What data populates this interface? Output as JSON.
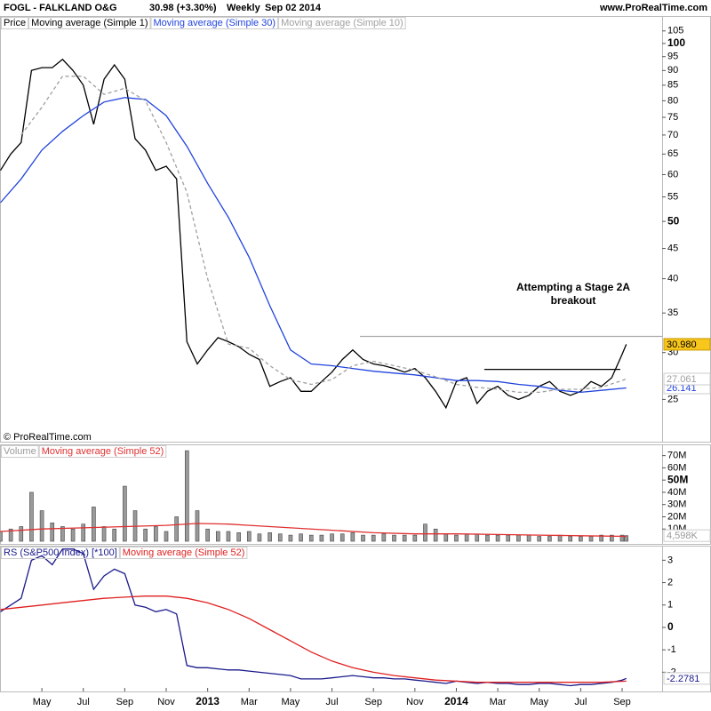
{
  "header": {
    "symbol": "FOGL - FALKLAND O&G",
    "quote": "30.98 (+3.30%)",
    "period": "Weekly",
    "date": "Sep 02 2014",
    "source": "www.ProRealTime.com"
  },
  "chart_data": [
    {
      "type": "line",
      "label": "Price",
      "log_scale": true,
      "copyright": "© ProRealTime.com",
      "annotation": [
        "Attempting a Stage 2A",
        "breakout"
      ],
      "xlim": [
        1.98,
        33.93
      ],
      "ylim": [
        22.1,
        107.5
      ],
      "yticks": [
        105,
        100,
        95,
        90,
        85,
        80,
        75,
        70,
        65,
        60,
        55,
        50,
        45,
        40,
        35,
        30,
        25
      ],
      "major_yticks": [
        100,
        50
      ],
      "levels": [
        {
          "value": 31.95,
          "x": [
            19.35,
            33.93
          ],
          "color": "#aaaaaa"
        },
        {
          "value": 28.1,
          "x": [
            25.35,
            31.91
          ],
          "color": "#000000"
        }
      ],
      "series": [
        {
          "name": "Moving average (Simple 1)",
          "type": "line",
          "color": "#000000",
          "last_label": "30.980",
          "last_label_fill": "#f8c61c",
          "x": [
            2,
            2.5,
            3,
            3.5,
            4,
            4.5,
            5,
            5.5,
            6,
            6.5,
            7,
            7.5,
            8,
            8.5,
            9,
            9.5,
            10,
            10.5,
            11,
            11.5,
            12,
            12.5,
            13,
            13.5,
            14,
            14.5,
            15,
            15.5,
            16,
            16.5,
            17,
            17.5,
            18,
            18.5,
            19,
            19.5,
            20,
            20.5,
            21,
            21.5,
            22,
            22.5,
            23,
            23.5,
            24,
            24.5,
            25,
            25.5,
            26,
            26.5,
            27,
            27.5,
            28,
            28.5,
            29,
            29.5,
            30,
            30.5,
            31,
            31.5,
            32,
            32.2
          ],
          "values": [
            61,
            65,
            68,
            90,
            91,
            91,
            94,
            90,
            85,
            73,
            87,
            92,
            87,
            69,
            66,
            61,
            62,
            59,
            31.3,
            28.7,
            30.3,
            31.8,
            31.3,
            30.7,
            29.8,
            29.2,
            26.3,
            26.8,
            27.2,
            25.8,
            25.8,
            26.8,
            27.8,
            29.2,
            30.3,
            29.2,
            28.7,
            28.5,
            28.2,
            27.8,
            28.2,
            27.2,
            25.8,
            24.2,
            26.8,
            27.2,
            24.6,
            25.8,
            26.3,
            25.4,
            25,
            25.4,
            26.3,
            26.8,
            25.8,
            25.4,
            25.8,
            26.8,
            26.3,
            27.2,
            29.8,
            30.98
          ]
        },
        {
          "name": "Moving average (Simple 30)",
          "type": "line",
          "color": "#2244dd",
          "last_label": "26.141",
          "x": [
            2,
            3,
            4,
            5,
            6,
            7,
            8,
            9,
            10,
            11,
            12,
            13,
            14,
            15,
            16,
            17,
            18,
            19,
            20,
            21,
            22,
            23,
            24,
            25,
            26,
            27,
            28,
            29,
            30,
            31,
            32.2
          ],
          "values": [
            53.8,
            59,
            66,
            71,
            75.5,
            79.6,
            81,
            80.4,
            75.5,
            67,
            58,
            50.8,
            43.5,
            36,
            30.3,
            28.7,
            28.5,
            28.2,
            27.9,
            27.7,
            27.5,
            27.2,
            26.9,
            26.9,
            26.8,
            26.5,
            26.3,
            25.9,
            25.7,
            25.9,
            26.141
          ]
        },
        {
          "name": "Moving average (Simple 10)",
          "type": "line",
          "dash": true,
          "color": "#a0a0a0",
          "last_label": "27.061",
          "x": [
            3,
            4,
            5,
            6,
            7,
            8,
            9,
            10,
            11,
            12,
            13,
            14,
            15,
            16,
            17,
            18,
            19,
            20,
            21,
            22,
            23,
            24,
            25,
            26,
            27,
            28,
            29,
            30,
            31,
            32.2
          ],
          "values": [
            70,
            78,
            88,
            88,
            82,
            84,
            80,
            68,
            56,
            40,
            31,
            30.5,
            28.5,
            27,
            26.5,
            27,
            28.5,
            29,
            28.5,
            28,
            27.3,
            26.5,
            26.2,
            26,
            25.7,
            25.7,
            26,
            26,
            26.2,
            27.061
          ]
        }
      ]
    },
    {
      "type": "bar",
      "xlim": [
        1.98,
        33.93
      ],
      "ylim": [
        0,
        77
      ],
      "yticks": [
        {
          "value": 70,
          "label": "70M"
        },
        {
          "value": 60,
          "label": "60M"
        },
        {
          "value": 50,
          "label": "50M"
        },
        {
          "value": 40,
          "label": "40M"
        },
        {
          "value": 30,
          "label": "30M"
        },
        {
          "value": 20,
          "label": "20M"
        },
        {
          "value": 10,
          "label": "10M"
        }
      ],
      "major_yticks": [
        50
      ],
      "series": [
        {
          "name": "Volume",
          "type": "bar",
          "color": "#9a9a9a",
          "last_label": "4,598K",
          "x": [
            2,
            2.5,
            3,
            3.5,
            4,
            4.5,
            5,
            5.5,
            6,
            6.5,
            7,
            7.5,
            8,
            8.5,
            9,
            9.5,
            10,
            10.5,
            11,
            11.5,
            12,
            12.5,
            13,
            13.5,
            14,
            14.5,
            15,
            15.5,
            16,
            16.5,
            17,
            17.5,
            18,
            18.5,
            19,
            19.5,
            20,
            20.5,
            21,
            21.5,
            22,
            22.5,
            23,
            23.5,
            24,
            24.5,
            25,
            25.5,
            26,
            26.5,
            27,
            27.5,
            28,
            28.5,
            29,
            29.5,
            30,
            30.5,
            31,
            31.5,
            32,
            32.2
          ],
          "values": [
            8,
            10,
            12,
            40,
            25,
            15,
            12,
            10,
            14,
            28,
            12,
            10,
            45,
            25,
            10,
            12,
            8,
            20,
            74,
            25,
            10,
            8,
            8,
            7,
            8,
            6,
            7,
            6,
            5,
            6,
            5,
            5,
            6,
            6,
            7,
            5,
            5,
            6,
            5,
            5,
            5,
            14,
            10,
            6,
            5,
            6,
            6,
            5,
            5,
            5,
            5,
            5,
            4,
            4,
            5,
            4,
            4,
            4,
            5,
            5,
            5,
            4.598
          ]
        },
        {
          "name": "Moving average (Simple 52)",
          "type": "line",
          "color": "#e03030",
          "x": [
            2,
            4,
            6,
            8,
            10,
            11.5,
            13,
            14,
            16,
            18,
            20,
            22,
            24,
            26,
            28,
            30,
            32.2
          ],
          "values": [
            8,
            10,
            11,
            12,
            13,
            14.5,
            14,
            13,
            11,
            9,
            7,
            6,
            6,
            5.5,
            5,
            4.5,
            4
          ]
        }
      ]
    },
    {
      "type": "line",
      "xlim": [
        1.98,
        33.93
      ],
      "ylim": [
        -2.74,
        3.53
      ],
      "yticks": [
        3,
        2,
        1,
        0,
        -1,
        -2
      ],
      "major_yticks": [
        0
      ],
      "xticks": [
        {
          "value": 4,
          "label": "May"
        },
        {
          "value": 6,
          "label": "Jul"
        },
        {
          "value": 8,
          "label": "Sep"
        },
        {
          "value": 10,
          "label": "Nov"
        },
        {
          "value": 12,
          "label": "2013"
        },
        {
          "value": 14,
          "label": "Mar"
        },
        {
          "value": 16,
          "label": "May"
        },
        {
          "value": 18,
          "label": "Jul"
        },
        {
          "value": 20,
          "label": "Sep"
        },
        {
          "value": 22,
          "label": "Nov"
        },
        {
          "value": 24,
          "label": "2014"
        },
        {
          "value": 26,
          "label": "Mar"
        },
        {
          "value": 28,
          "label": "May"
        },
        {
          "value": 30,
          "label": "Jul"
        },
        {
          "value": 32,
          "label": "Sep"
        }
      ],
      "major_xticks": [
        12,
        24
      ],
      "series": [
        {
          "name": "RS (S&P500 Index) [*100]",
          "type": "line",
          "color": "#1a1a8c",
          "last_label": "-2.2781",
          "x": [
            2,
            2.5,
            3,
            3.5,
            4,
            4.5,
            5,
            5.5,
            6,
            6.5,
            7,
            7.5,
            8,
            8.5,
            9,
            9.5,
            10,
            10.5,
            11,
            11.5,
            12,
            12.5,
            13,
            13.5,
            14,
            14.5,
            15,
            15.5,
            16,
            16.5,
            17,
            17.5,
            18,
            18.5,
            19,
            19.5,
            20,
            20.5,
            21,
            21.5,
            22,
            22.5,
            23,
            23.5,
            24,
            24.5,
            25,
            25.5,
            26,
            26.5,
            27,
            27.5,
            28,
            28.5,
            29,
            29.5,
            30,
            30.5,
            31,
            31.5,
            32,
            32.2
          ],
          "values": [
            0.7,
            1.0,
            1.3,
            3.0,
            3.2,
            2.8,
            3.5,
            3.5,
            3.3,
            1.7,
            2.3,
            2.6,
            2.4,
            1.0,
            0.9,
            0.7,
            0.8,
            0.6,
            -1.7,
            -1.8,
            -1.8,
            -1.85,
            -1.9,
            -1.9,
            -1.95,
            -2.0,
            -2.05,
            -2.1,
            -2.15,
            -2.3,
            -2.3,
            -2.3,
            -2.25,
            -2.2,
            -2.15,
            -2.2,
            -2.25,
            -2.25,
            -2.3,
            -2.3,
            -2.35,
            -2.4,
            -2.45,
            -2.5,
            -2.4,
            -2.45,
            -2.5,
            -2.45,
            -2.5,
            -2.5,
            -2.55,
            -2.55,
            -2.5,
            -2.5,
            -2.55,
            -2.6,
            -2.55,
            -2.55,
            -2.5,
            -2.45,
            -2.35,
            -2.2781
          ]
        },
        {
          "name": "Moving average (Simple 52)",
          "type": "line",
          "color": "#e02020",
          "x": [
            2,
            3,
            4,
            5,
            6,
            7,
            8,
            9,
            10,
            11,
            12,
            13,
            14,
            15,
            16,
            17,
            18,
            19,
            20,
            21,
            22,
            23,
            24,
            25,
            26,
            27,
            28,
            29,
            30,
            31,
            32.2
          ],
          "values": [
            0.8,
            0.9,
            1.0,
            1.1,
            1.2,
            1.3,
            1.35,
            1.4,
            1.4,
            1.3,
            1.1,
            0.8,
            0.4,
            -0.1,
            -0.6,
            -1.1,
            -1.5,
            -1.8,
            -2.0,
            -2.15,
            -2.25,
            -2.35,
            -2.4,
            -2.45,
            -2.45,
            -2.45,
            -2.45,
            -2.45,
            -2.45,
            -2.45,
            -2.4
          ]
        }
      ]
    }
  ]
}
